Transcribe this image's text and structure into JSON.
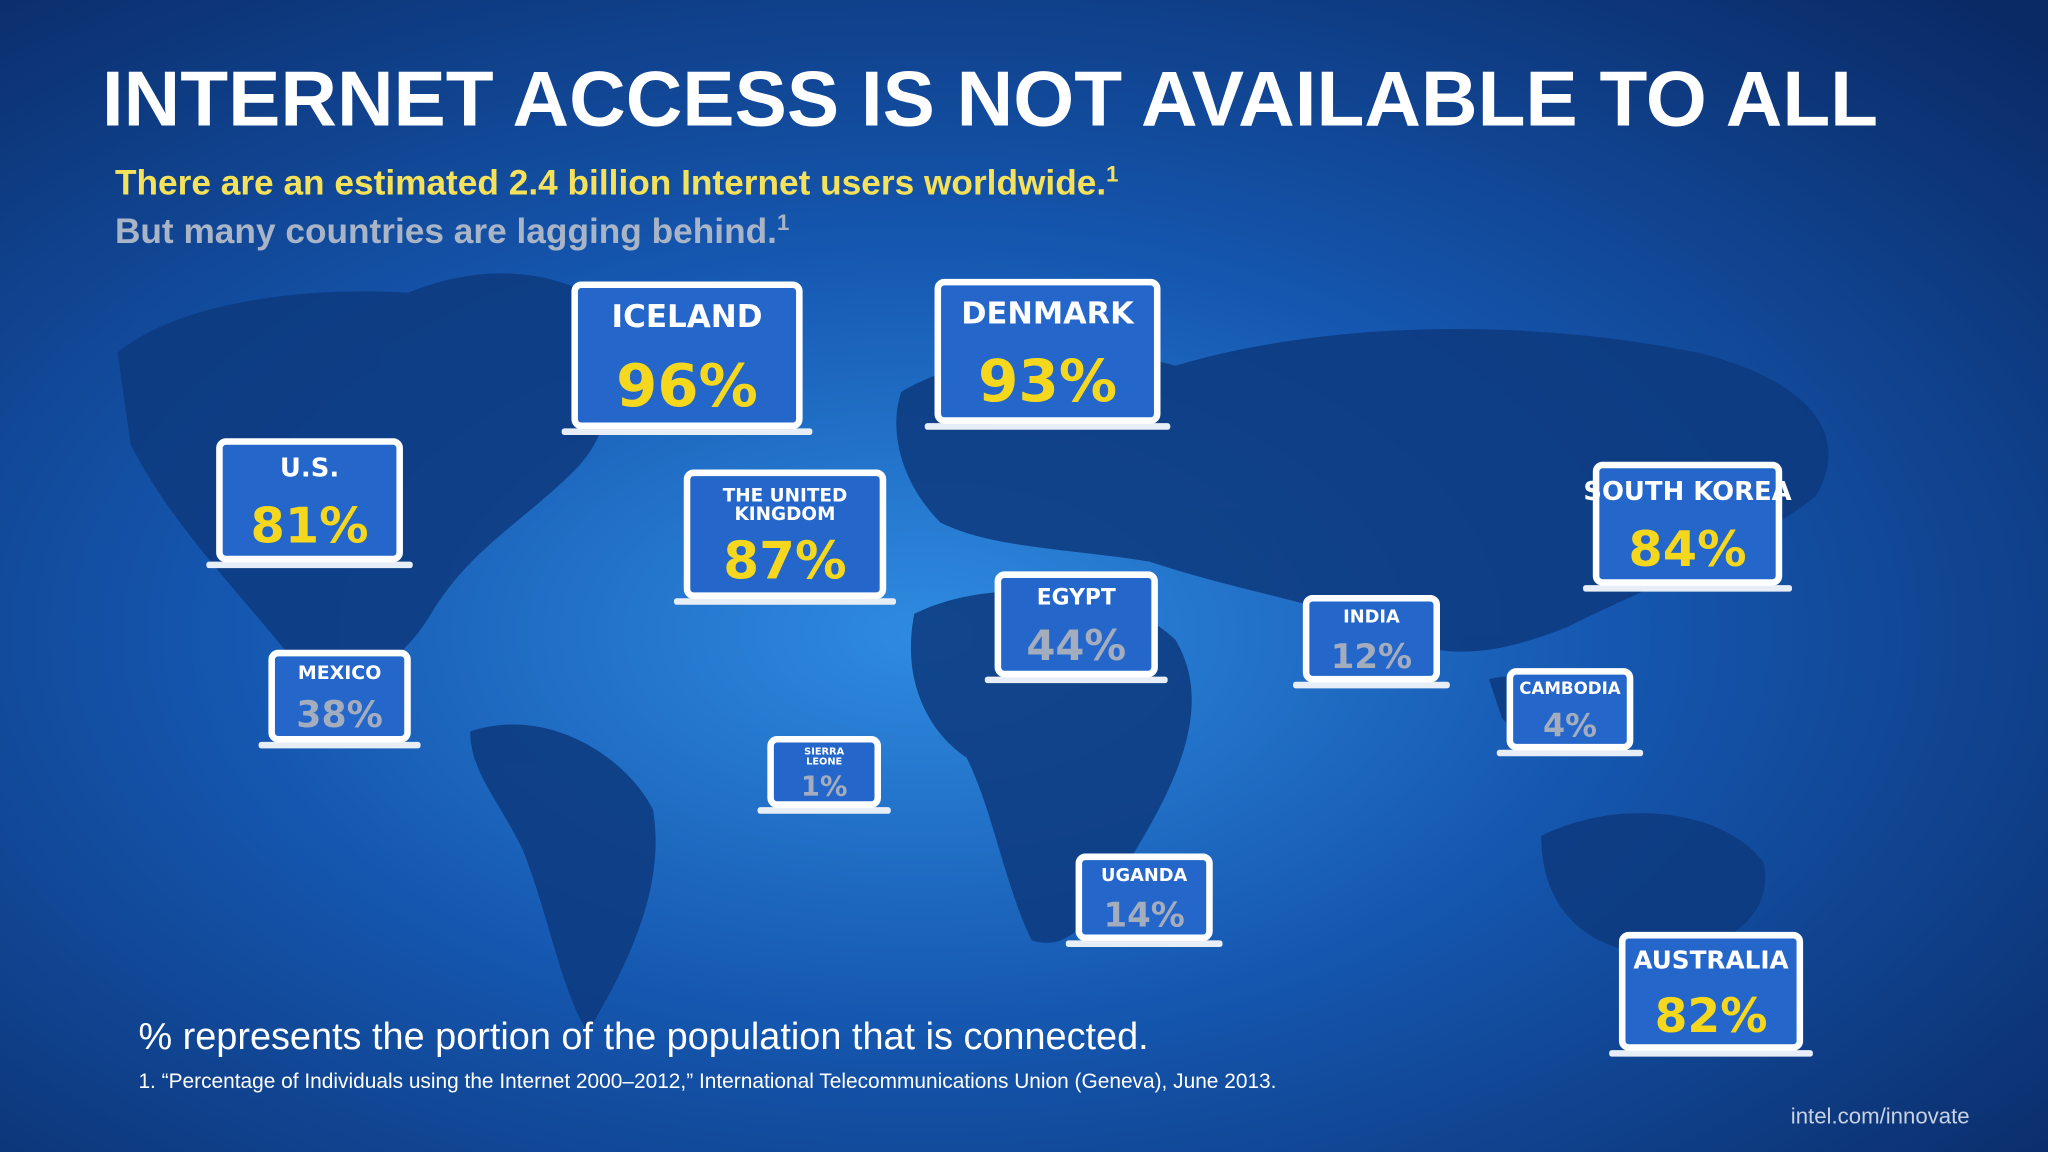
{
  "header": {
    "title": "INTERNET ACCESS IS NOT AVAILABLE TO ALL",
    "subtitle_1": "There are an estimated 2.4 billion Internet users worldwide.",
    "subtitle_1_note": "1",
    "subtitle_2": "But many countries are lagging behind.",
    "subtitle_2_note": "1"
  },
  "countries": [
    {
      "name": [
        "ICELAND"
      ],
      "value": "96%",
      "color": "#f5d81e"
    },
    {
      "name": [
        "DENMARK"
      ],
      "value": "93%",
      "color": "#f5d81e"
    },
    {
      "name": [
        "U.S."
      ],
      "value": "81%",
      "color": "#f5d81e"
    },
    {
      "name": [
        "THE UNITED",
        "KINGDOM"
      ],
      "value": "87%",
      "color": "#f5d81e"
    },
    {
      "name": [
        "SOUTH KOREA"
      ],
      "value": "84%",
      "color": "#f5d81e"
    },
    {
      "name": [
        "EGYPT"
      ],
      "value": "44%",
      "color": "#a3adbd"
    },
    {
      "name": [
        "INDIA"
      ],
      "value": "12%",
      "color": "#a3adbd"
    },
    {
      "name": [
        "MEXICO"
      ],
      "value": "38%",
      "color": "#a3adbd"
    },
    {
      "name": [
        "CAMBODIA"
      ],
      "value": "4%",
      "color": "#a3adbd"
    },
    {
      "name": [
        "SIERRA",
        "LEONE"
      ],
      "value": "1%",
      "color": "#a3adbd"
    },
    {
      "name": [
        "UGANDA"
      ],
      "value": "14%",
      "color": "#a3adbd"
    },
    {
      "name": [
        "AUSTRALIA"
      ],
      "value": "82%",
      "color": "#f5d81e"
    }
  ],
  "footer": {
    "note": "% represents the portion of the population that is connected.",
    "source": "1. “Percentage of Individuals using the Internet 2000–2012,” International Telecommunications Union (Geneva), June 2013.",
    "url": "intel.com/innovate"
  }
}
